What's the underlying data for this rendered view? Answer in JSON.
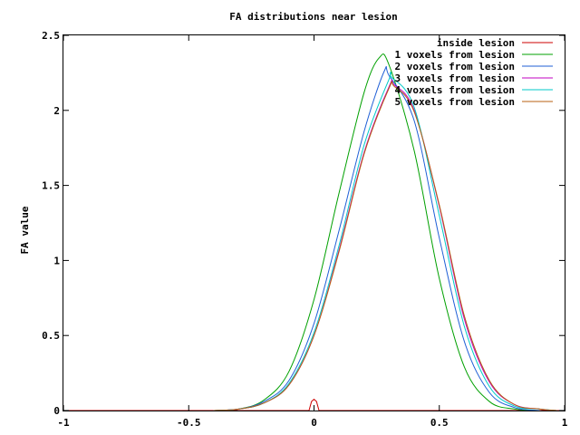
{
  "chart_data": {
    "type": "line",
    "title": "FA distributions near lesion",
    "xlabel": "",
    "ylabel": "FA value",
    "xlim": [
      -1,
      1
    ],
    "ylim": [
      0,
      2.5
    ],
    "xticks": [
      "-1",
      "-0.5",
      "0",
      "0.5",
      "1"
    ],
    "yticks": [
      "0",
      "0.5",
      "1",
      "1.5",
      "2",
      "2.5"
    ],
    "legend_position": "top-right",
    "grid": false,
    "series": [
      {
        "name": "inside lesion",
        "color": "#cc0000",
        "x": [
          -1,
          -0.02,
          -0.01,
          0,
          0.01,
          0.02,
          1
        ],
        "y": [
          0,
          0,
          0.06,
          0.075,
          0.06,
          0,
          0
        ]
      },
      {
        "name": "1 voxels from lesion",
        "color": "#00a000",
        "x": [
          -0.4,
          -0.3,
          -0.2,
          -0.1,
          0,
          0.1,
          0.2,
          0.26,
          0.3,
          0.4,
          0.5,
          0.6,
          0.7,
          0.8,
          0.9
        ],
        "y": [
          0.0,
          0.01,
          0.07,
          0.26,
          0.74,
          1.45,
          2.12,
          2.35,
          2.3,
          1.73,
          0.88,
          0.29,
          0.06,
          0.01,
          0.0
        ]
      },
      {
        "name": "2 voxels from lesion",
        "color": "#1f5fd6",
        "x": [
          -0.4,
          -0.3,
          -0.2,
          -0.1,
          0,
          0.1,
          0.2,
          0.28,
          0.3,
          0.4,
          0.5,
          0.6,
          0.7,
          0.8,
          0.9
        ],
        "y": [
          0.0,
          0.01,
          0.06,
          0.2,
          0.58,
          1.2,
          1.86,
          2.26,
          2.23,
          1.93,
          1.15,
          0.46,
          0.12,
          0.02,
          0.0
        ]
      },
      {
        "name": "3 voxels from lesion",
        "color": "#c000c0",
        "x": [
          -0.4,
          -0.3,
          -0.2,
          -0.1,
          0,
          0.1,
          0.2,
          0.3,
          0.32,
          0.4,
          0.5,
          0.6,
          0.7,
          0.8,
          0.9,
          0.97
        ],
        "y": [
          0.0,
          0.01,
          0.05,
          0.17,
          0.5,
          1.07,
          1.72,
          2.16,
          2.17,
          2.0,
          1.36,
          0.61,
          0.19,
          0.04,
          0.01,
          0.0
        ]
      },
      {
        "name": "4 voxels from lesion",
        "color": "#00c8c8",
        "x": [
          -0.4,
          -0.3,
          -0.2,
          -0.1,
          0,
          0.1,
          0.2,
          0.3,
          0.31,
          0.4,
          0.5,
          0.6,
          0.7,
          0.8,
          0.9,
          0.97
        ],
        "y": [
          0.0,
          0.01,
          0.05,
          0.18,
          0.52,
          1.1,
          1.77,
          2.21,
          2.22,
          2.02,
          1.3,
          0.56,
          0.16,
          0.03,
          0.01,
          0.0
        ]
      },
      {
        "name": "5 voxels from lesion",
        "color": "#b86010",
        "x": [
          -0.4,
          -0.3,
          -0.2,
          -0.1,
          0,
          0.1,
          0.2,
          0.3,
          0.32,
          0.4,
          0.5,
          0.6,
          0.7,
          0.8,
          0.9,
          0.97
        ],
        "y": [
          0.0,
          0.01,
          0.05,
          0.17,
          0.5,
          1.06,
          1.71,
          2.15,
          2.16,
          1.99,
          1.37,
          0.63,
          0.2,
          0.04,
          0.01,
          0.0
        ]
      }
    ]
  }
}
